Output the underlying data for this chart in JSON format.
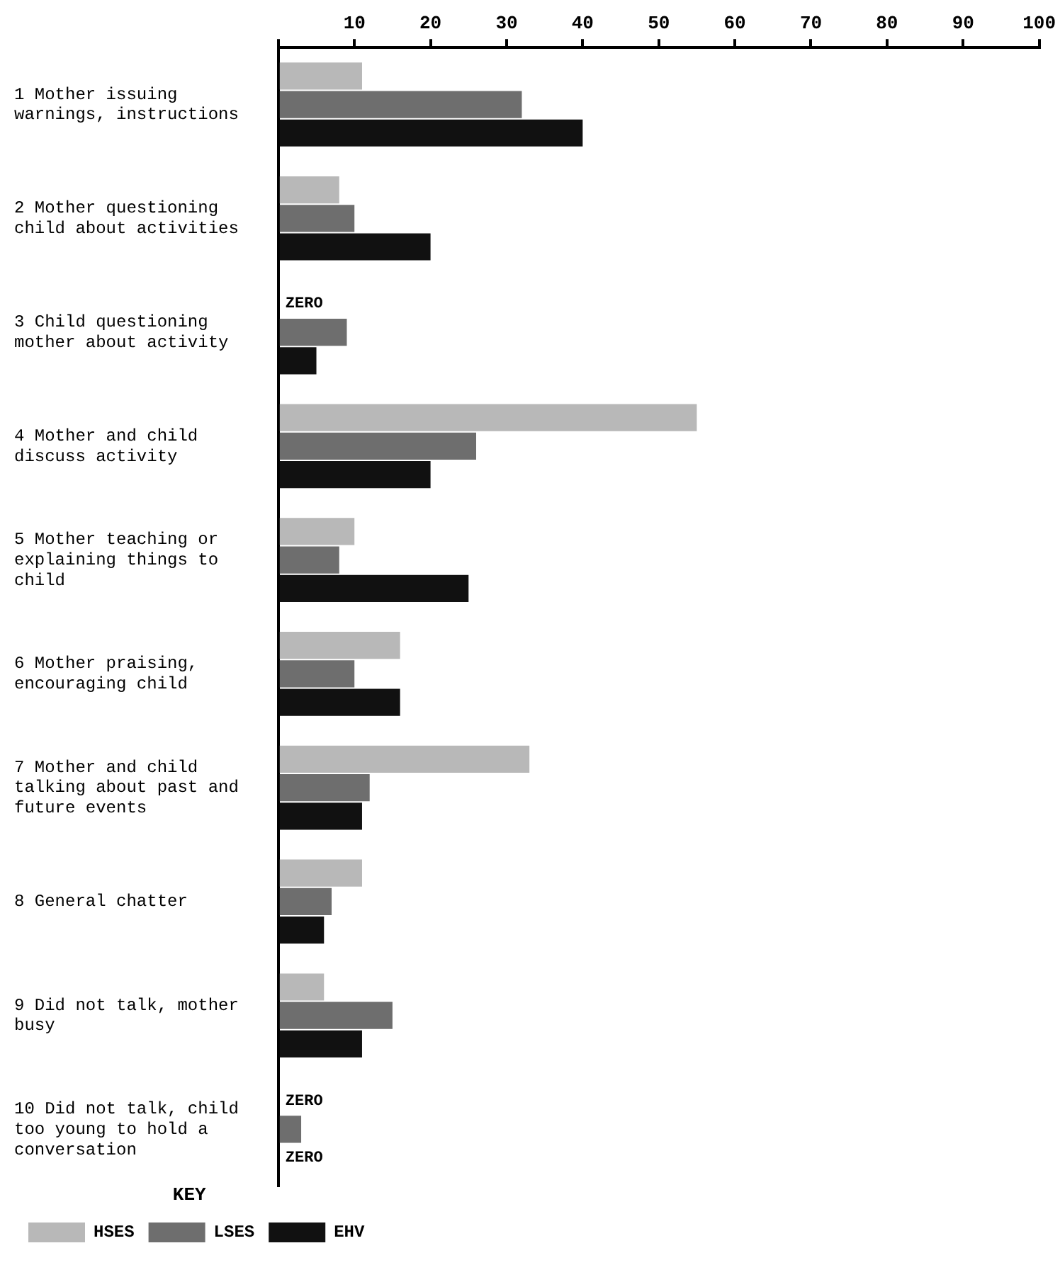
{
  "chart_data": {
    "type": "bar",
    "orientation": "horizontal",
    "legend_title": "KEY",
    "legend": "bottom left",
    "grid": false,
    "categories": [
      "1 Mother issuing warnings, instructions",
      "2 Mother questioning child about activities",
      "3 Child questioning mother about activity",
      "4 Mother and child discuss activity",
      "5 Mother teaching or explaining things to child",
      "6 Mother praising, encouraging child",
      "7 Mother and child talking about past and future events",
      "8 General chatter",
      "9 Did not talk, mother busy",
      "10 Did not talk, child too young to hold a conversation"
    ],
    "series": [
      {
        "name": "HSES",
        "color": "#b8b8b8",
        "values": [
          11,
          8,
          0,
          55,
          10,
          16,
          33,
          11,
          6,
          0
        ]
      },
      {
        "name": "LSES",
        "color": "#6e6e6e",
        "values": [
          32,
          10,
          9,
          26,
          8,
          10,
          12,
          7,
          15,
          3
        ]
      },
      {
        "name": "EHV",
        "color": "#111111",
        "values": [
          40,
          20,
          5,
          20,
          25,
          16,
          11,
          6,
          11,
          0
        ]
      }
    ],
    "annotations": [
      "ZERO",
      "ZERO",
      "ZERO"
    ],
    "xlim": [
      0,
      100
    ],
    "xticks": [
      {
        "value": 0,
        "label": null
      },
      10,
      20,
      30,
      40,
      50,
      60,
      70,
      80,
      90,
      100
    ]
  }
}
